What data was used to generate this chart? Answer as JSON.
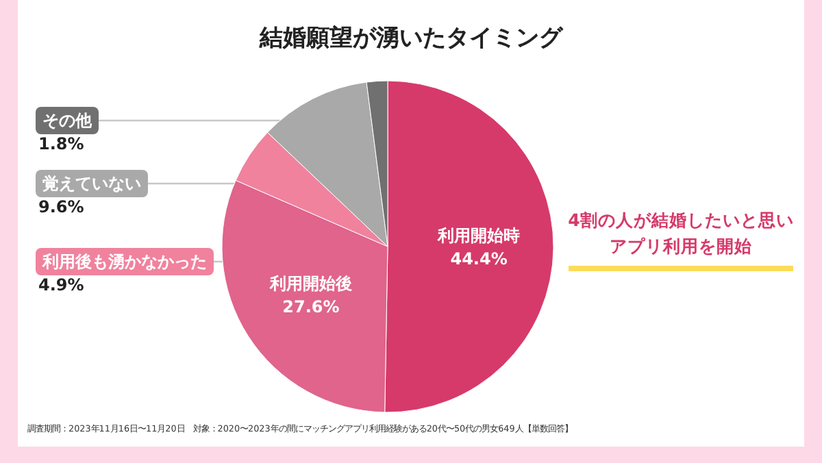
{
  "chart_data": {
    "type": "pie",
    "title": "結婚願望が湧いたタイミング",
    "categories": [
      "利用開始時",
      "利用開始後",
      "利用後も湧かなかった",
      "覚えていない",
      "その他"
    ],
    "values": [
      44.4,
      27.6,
      4.9,
      9.6,
      1.8
    ],
    "value_labels": [
      "44.4%",
      "27.6%",
      "4.9%",
      "9.6%",
      "1.8%"
    ],
    "colors": [
      "#d63a6a",
      "#e0648c",
      "#f0829e",
      "#a9a9a9",
      "#707070"
    ],
    "annotations": [
      "4割の人が結婚したいと思いアプリ利用を開始",
      "調査期間：2023年11月16日〜11月20日　対象：2020〜2023年の間にマッチングアプリ利用経験がある20代〜50代の男女649人【単数回答】"
    ]
  }
}
